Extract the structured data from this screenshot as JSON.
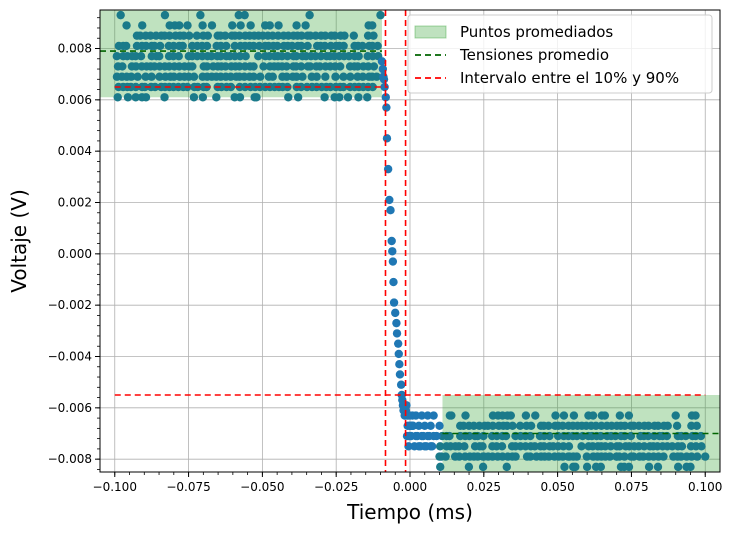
{
  "chart_data": {
    "type": "scatter",
    "xlabel": "Tiempo (ms)",
    "ylabel": "Voltaje (V)",
    "xlim": [
      -0.105,
      0.105
    ],
    "ylim": [
      -0.0085,
      0.0095
    ],
    "x_ticks": [
      -0.1,
      -0.075,
      -0.05,
      -0.025,
      0.0,
      0.025,
      0.05,
      0.075,
      0.1
    ],
    "x_tick_labels": [
      "−0.100",
      "−0.075",
      "−0.050",
      "−0.025",
      "0.000",
      "0.025",
      "0.050",
      "0.075",
      "0.100"
    ],
    "y_ticks": [
      -0.008,
      -0.006,
      -0.004,
      -0.002,
      0.0,
      0.002,
      0.004,
      0.006,
      0.008
    ],
    "y_tick_labels": [
      "−0.008",
      "−0.006",
      "−0.004",
      "−0.002",
      "0.000",
      "0.002",
      "0.004",
      "0.006",
      "0.008"
    ],
    "grid": true,
    "legend_position": "top-right",
    "legend": [
      {
        "label": "Puntos promediados",
        "kind": "patch",
        "color": "#2ca02c"
      },
      {
        "label": "Tensiones promedio",
        "kind": "dashed-line",
        "color": "#006400"
      },
      {
        "label": "Intervalo entre el 10% y 90%",
        "kind": "dashed-line",
        "color": "#ff0000"
      }
    ],
    "shaded_regions": [
      {
        "x": [
          -0.105,
          -0.0095
        ],
        "y": [
          0.0061,
          0.0095
        ],
        "color": "#2ca02c",
        "alpha": 0.3
      },
      {
        "x": [
          0.011,
          0.105
        ],
        "y": [
          -0.0085,
          -0.0055
        ],
        "color": "#2ca02c",
        "alpha": 0.3
      }
    ],
    "average_lines": [
      {
        "x": [
          -0.105,
          -0.0095
        ],
        "y": 0.0079,
        "color": "#006400"
      },
      {
        "x": [
          0.011,
          0.105
        ],
        "y": -0.007,
        "color": "#006400"
      }
    ],
    "threshold_hlines": [
      {
        "y": 0.0065,
        "x": [
          -0.1,
          -0.0075
        ],
        "color": "#ff0000"
      },
      {
        "y": -0.0055,
        "x": [
          -0.1,
          0.1
        ],
        "color": "#ff0000"
      }
    ],
    "threshold_vlines": [
      {
        "x": -0.0083,
        "color": "#ff0000"
      },
      {
        "x": -0.0015,
        "color": "#ff0000"
      }
    ],
    "series": [
      {
        "color": "#1f77b4",
        "x": [
          -0.0095,
          -0.0092,
          -0.009,
          -0.0088,
          -0.0086,
          -0.0082,
          -0.008,
          -0.0078,
          -0.0074,
          -0.007,
          -0.0066,
          -0.0062,
          -0.006,
          -0.0058,
          -0.0056,
          -0.0054,
          -0.005,
          -0.0046,
          -0.0044,
          -0.004,
          -0.0038,
          -0.0036,
          -0.0034,
          -0.003,
          -0.0028,
          -0.0026,
          -0.0024,
          -0.0022,
          -0.0018,
          -0.0016,
          -0.0014,
          -0.0012,
          -0.001,
          -0.0008,
          -0.0006,
          -0.0004,
          -0.0002,
          0.0,
          0.0002,
          0.0004,
          0.0006,
          0.0008,
          0.001,
          0.002,
          0.003,
          0.004,
          0.005,
          0.006,
          0.007,
          0.008,
          0.009,
          0.01,
          -0.001,
          0.0,
          0.001,
          0.002,
          0.003,
          0.004,
          0.005,
          0.006,
          0.007,
          0.008,
          -0.0005,
          0.0005,
          0.0015,
          0.0025,
          0.0035,
          0.0045,
          0.0055,
          0.0065,
          0.0075
        ],
        "y": [
          0.0075,
          0.0072,
          0.0069,
          0.0068,
          0.0065,
          0.0061,
          0.0057,
          0.0045,
          0.0033,
          0.0021,
          0.0017,
          0.0005,
          0.0001,
          -0.0003,
          -0.0011,
          -0.0019,
          -0.0023,
          -0.0027,
          -0.0031,
          -0.0035,
          -0.0039,
          -0.0043,
          -0.0047,
          -0.0051,
          -0.0055,
          -0.0057,
          -0.0059,
          -0.0061,
          -0.0063,
          -0.0063,
          -0.0061,
          -0.0059,
          -0.0063,
          -0.0067,
          -0.0063,
          -0.0071,
          -0.0067,
          -0.0063,
          -0.0067,
          -0.0071,
          -0.0067,
          -0.0063,
          -0.0067,
          -0.0063,
          -0.0067,
          -0.0063,
          -0.0067,
          -0.0063,
          -0.0067,
          -0.0063,
          -0.0071,
          -0.0067,
          -0.0071,
          -0.0071,
          -0.0067,
          -0.0071,
          -0.0075,
          -0.0071,
          -0.0075,
          -0.0071,
          -0.0075,
          -0.0071,
          -0.0075,
          -0.0067,
          -0.0075,
          -0.0071,
          -0.0075,
          -0.0071,
          -0.0075,
          -0.0071,
          -0.0075
        ]
      }
    ],
    "averaged_series": {
      "color": "#1a7a8a",
      "left_x_range": [
        -0.099,
        -0.0095
      ],
      "right_x_range": [
        0.0105,
        0.1
      ],
      "left_y_levels": [
        0.0089,
        0.0085,
        0.0081,
        0.0077,
        0.0073,
        0.0069,
        0.0065,
        0.0061
      ],
      "right_y_levels": [
        -0.0063,
        -0.0067,
        -0.0071,
        -0.0075,
        -0.0079,
        -0.0083
      ],
      "left_outliers": [
        {
          "x": -0.098,
          "y": 0.0093
        },
        {
          "x": -0.083,
          "y": 0.0093
        },
        {
          "x": -0.071,
          "y": 0.0093
        },
        {
          "x": -0.058,
          "y": 0.0093
        },
        {
          "x": -0.056,
          "y": 0.0093
        },
        {
          "x": -0.034,
          "y": 0.0093
        },
        {
          "x": -0.01,
          "y": 0.0093
        },
        {
          "x": -0.099,
          "y": 0.0061
        },
        {
          "x": -0.052,
          "y": 0.0061
        },
        {
          "x": -0.021,
          "y": 0.0061
        }
      ],
      "right_outliers": [
        {
          "x": 0.056,
          "y": -0.0083
        },
        {
          "x": 0.084,
          "y": -0.0083
        },
        {
          "x": 0.01,
          "y": -0.0079
        },
        {
          "x": 0.025,
          "y": -0.0079
        },
        {
          "x": 0.054,
          "y": -0.0079
        },
        {
          "x": 0.07,
          "y": -0.0079
        },
        {
          "x": 0.1,
          "y": -0.0079
        },
        {
          "x": 0.014,
          "y": -0.0063
        },
        {
          "x": 0.033,
          "y": -0.0063
        },
        {
          "x": 0.066,
          "y": -0.0063
        },
        {
          "x": 0.09,
          "y": -0.0063
        }
      ]
    }
  }
}
